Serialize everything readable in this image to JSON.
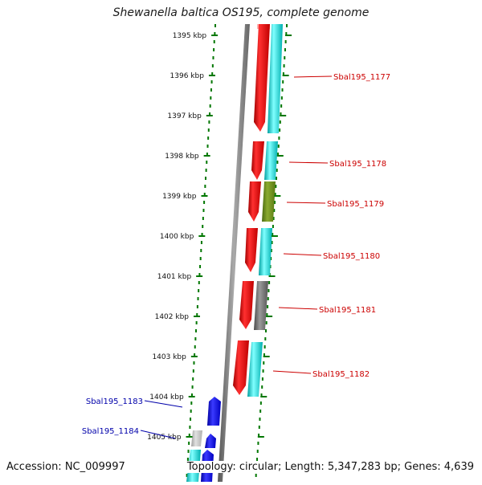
{
  "title": "Shewanella baltica OS195, complete genome",
  "footer": {
    "accession": "Accession: NC_009997",
    "summary": "Topology: circular; Length: 5,347,283 bp; Genes: 4,639"
  },
  "ticks": [
    "1395 kbp",
    "1396 kbp",
    "1397 kbp",
    "1398 kbp",
    "1399 kbp",
    "1400 kbp",
    "1401 kbp",
    "1402 kbp",
    "1403 kbp",
    "1404 kbp",
    "1405 kbp"
  ],
  "genes": [
    {
      "label": "Sbal195_1177",
      "strand": "+",
      "color": "#00c8c8"
    },
    {
      "label": "Sbal195_1178",
      "strand": "+",
      "color": "#00c8c8"
    },
    {
      "label": "Sbal195_1179",
      "strand": "+",
      "color": "#6b8a1a"
    },
    {
      "label": "Sbal195_1180",
      "strand": "+",
      "color": "#00c8c8"
    },
    {
      "label": "Sbal195_1181",
      "strand": "+",
      "color": "#666666"
    },
    {
      "label": "Sbal195_1182",
      "strand": "+",
      "color": "#00c8c8"
    },
    {
      "label": "Sbal195_1183",
      "strand": "-",
      "color": "#0000dd"
    },
    {
      "label": "Sbal195_1184",
      "strand": "-",
      "color": "#0000dd"
    }
  ],
  "colors": {
    "forward_label": "#cc0000",
    "reverse_label": "#0000aa",
    "tick": "#007700",
    "backbone": "#777777",
    "forward_cds": "#ee0000",
    "reverse_cds": "#0000dd"
  }
}
